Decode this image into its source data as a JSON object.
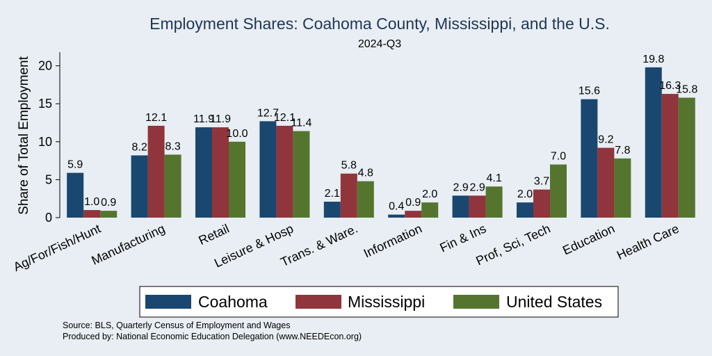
{
  "chart_data": {
    "type": "bar",
    "title": "Employment Shares: Coahoma County, Mississippi, and the U.S.",
    "subtitle": "2024-Q3",
    "ylabel": "Share of Total Employment",
    "xlabel": "",
    "ylim": [
      0,
      21.8
    ],
    "yticks": [
      0,
      5,
      10,
      15,
      20
    ],
    "grid": false,
    "legend": "bottom",
    "categories": [
      "Ag/For/Fish/Hunt",
      "Manufacturing",
      "Retail",
      "Leisure & Hosp",
      "Trans. & Ware.",
      "Information",
      "Fin & Ins",
      "Prof, Sci, Tech",
      "Education",
      "Health Care"
    ],
    "series": [
      {
        "name": "Coahoma",
        "color": "#1a476f",
        "values": [
          5.9,
          8.2,
          11.9,
          12.7,
          2.1,
          0.4,
          2.9,
          2.0,
          15.6,
          19.8
        ]
      },
      {
        "name": "Mississippi",
        "color": "#90353b",
        "values": [
          1.0,
          12.1,
          11.9,
          12.1,
          5.8,
          0.9,
          2.9,
          3.7,
          9.2,
          16.3
        ]
      },
      {
        "name": "United States",
        "color": "#55752f",
        "values": [
          0.9,
          8.3,
          10.0,
          11.4,
          4.8,
          2.0,
          4.1,
          7.0,
          7.8,
          15.8
        ]
      }
    ]
  },
  "notes": {
    "source": "Source: BLS, Quarterly Census of Employment and Wages",
    "produced": "Produced by: National Economic Education Delegation (www.NEEDEcon.org)"
  }
}
